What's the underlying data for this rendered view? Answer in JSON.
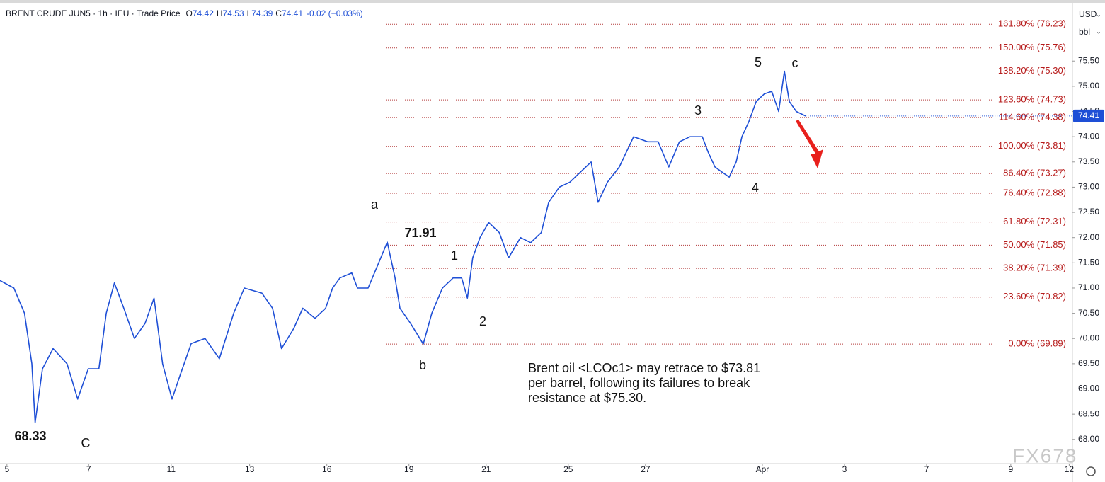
{
  "chart_data": {
    "type": "line",
    "header": {
      "symbol": "BRENT CRUDE JUN5 · 1h · IEU · Trade Price",
      "ohlc": [
        {
          "key": "O",
          "val": "74.42"
        },
        {
          "key": "H",
          "val": "74.53"
        },
        {
          "key": "L",
          "val": "74.39"
        },
        {
          "key": "C",
          "val": "74.41"
        }
      ],
      "change": "-0.02 (−0.03%)"
    },
    "currency": "USD",
    "unit": "bbl",
    "color": "#1e4fd6",
    "x": [
      -0.17,
      0.17,
      0.43,
      0.61,
      0.69,
      0.87,
      1.13,
      1.47,
      1.73,
      1.99,
      2.25,
      2.43,
      2.63,
      2.86,
      3.12,
      3.38,
      3.6,
      3.81,
      4.04,
      4.25,
      4.51,
      4.85,
      5.2,
      5.55,
      5.81,
      6.24,
      6.5,
      6.72,
      7.02,
      7.24,
      7.54,
      7.8,
      7.97,
      8.15,
      8.44,
      8.58,
      8.84,
      9.1,
      9.31,
      9.5,
      9.62,
      9.88,
      10.19,
      10.4,
      10.66,
      10.92,
      11.13,
      11.27,
      11.4,
      11.58,
      11.79,
      12.05,
      12.28,
      12.57,
      12.82,
      13.08,
      13.26,
      13.52,
      13.78,
      14.04,
      14.3,
      14.47,
      14.7,
      14.99,
      15.34,
      15.68,
      15.94,
      16.2,
      16.46,
      16.72,
      17.02,
      17.16,
      17.33,
      17.5,
      17.68,
      17.85,
      17.99,
      18.16,
      18.34,
      18.54,
      18.72,
      18.89,
      19.03,
      19.15,
      19.32,
      19.55
    ],
    "values": [
      71.15,
      71.0,
      70.5,
      69.5,
      68.33,
      69.4,
      69.8,
      69.5,
      68.8,
      69.4,
      69.4,
      70.5,
      71.1,
      70.6,
      70.0,
      70.3,
      70.8,
      69.5,
      68.8,
      69.3,
      69.9,
      70.0,
      69.6,
      70.5,
      71.0,
      70.9,
      70.6,
      69.8,
      70.2,
      70.6,
      70.4,
      70.6,
      71.0,
      71.2,
      71.3,
      71.0,
      71.0,
      71.5,
      71.91,
      71.2,
      70.6,
      70.3,
      69.89,
      70.5,
      71.0,
      71.2,
      71.2,
      70.8,
      71.6,
      72.0,
      72.3,
      72.1,
      71.6,
      72.0,
      71.9,
      72.1,
      72.7,
      73.0,
      73.1,
      73.3,
      73.5,
      72.7,
      73.1,
      73.4,
      74.0,
      73.9,
      73.9,
      73.4,
      73.9,
      74.0,
      74.0,
      73.7,
      73.4,
      73.3,
      73.2,
      73.5,
      74.0,
      74.3,
      74.7,
      74.85,
      74.9,
      74.5,
      75.3,
      74.7,
      74.5,
      74.41
    ],
    "xlim": [
      -0.17,
      26.08
    ],
    "xticks": [
      {
        "value": 0,
        "label": "5"
      },
      {
        "value": 2,
        "label": "7"
      },
      {
        "value": 4.02,
        "label": "11"
      },
      {
        "value": 5.94,
        "label": "13"
      },
      {
        "value": 7.83,
        "label": "16"
      },
      {
        "value": 9.84,
        "label": "19"
      },
      {
        "value": 11.73,
        "label": "21"
      },
      {
        "value": 13.74,
        "label": "25"
      },
      {
        "value": 15.63,
        "label": "27"
      },
      {
        "value": 18.49,
        "label": "Apr"
      },
      {
        "value": 20.5,
        "label": "3"
      },
      {
        "value": 22.51,
        "label": "7"
      },
      {
        "value": 24.57,
        "label": "9"
      },
      {
        "value": 26,
        "label": "12"
      }
    ],
    "ylim": [
      67.52,
      76.71
    ],
    "yticks": [
      {
        "value": 68,
        "label": "68.00"
      },
      {
        "value": 68.5,
        "label": "68.50"
      },
      {
        "value": 69,
        "label": "69.00"
      },
      {
        "value": 69.5,
        "label": "69.50"
      },
      {
        "value": 70,
        "label": "70.00"
      },
      {
        "value": 70.5,
        "label": "70.50"
      },
      {
        "value": 71,
        "label": "71.00"
      },
      {
        "value": 71.5,
        "label": "71.50"
      },
      {
        "value": 72,
        "label": "72.00"
      },
      {
        "value": 72.5,
        "label": "72.50"
      },
      {
        "value": 73,
        "label": "73.00"
      },
      {
        "value": 73.5,
        "label": "73.50"
      },
      {
        "value": 74,
        "label": "74.00"
      },
      {
        "value": 74.5,
        "label": "74.50"
      },
      {
        "value": 75,
        "label": "75.00"
      },
      {
        "value": 75.5,
        "label": "75.50"
      }
    ],
    "last_price": 74.41,
    "fib_levels": [
      {
        "value": 76.23,
        "label": "161.80% (76.23)"
      },
      {
        "value": 75.76,
        "label": "150.00% (75.76)"
      },
      {
        "value": 75.3,
        "label": "138.20% (75.30)"
      },
      {
        "value": 74.73,
        "label": "123.60% (74.73)"
      },
      {
        "value": 74.38,
        "label": "114.60% (74.38)"
      },
      {
        "value": 73.81,
        "label": "100.00% (73.81)"
      },
      {
        "value": 73.27,
        "label": "86.40% (73.27)"
      },
      {
        "value": 72.88,
        "label": "76.40% (72.88)"
      },
      {
        "value": 72.31,
        "label": "61.80% (72.31)"
      },
      {
        "value": 71.85,
        "label": "50.00% (71.85)"
      },
      {
        "value": 71.39,
        "label": "38.20% (71.39)"
      },
      {
        "value": 70.82,
        "label": "23.60% (70.82)"
      },
      {
        "value": 69.89,
        "label": "0.00% (69.89)"
      }
    ],
    "annotations": [
      "a",
      "71.91",
      "1",
      "2",
      "b",
      "3",
      "4",
      "5",
      "c",
      "68.33",
      "C"
    ],
    "note": [
      "Brent oil <LCOc1> may retrace to $73.81",
      "per barrel, following its failures to break",
      "resistance at $75.30."
    ],
    "watermark": "FX678"
  }
}
